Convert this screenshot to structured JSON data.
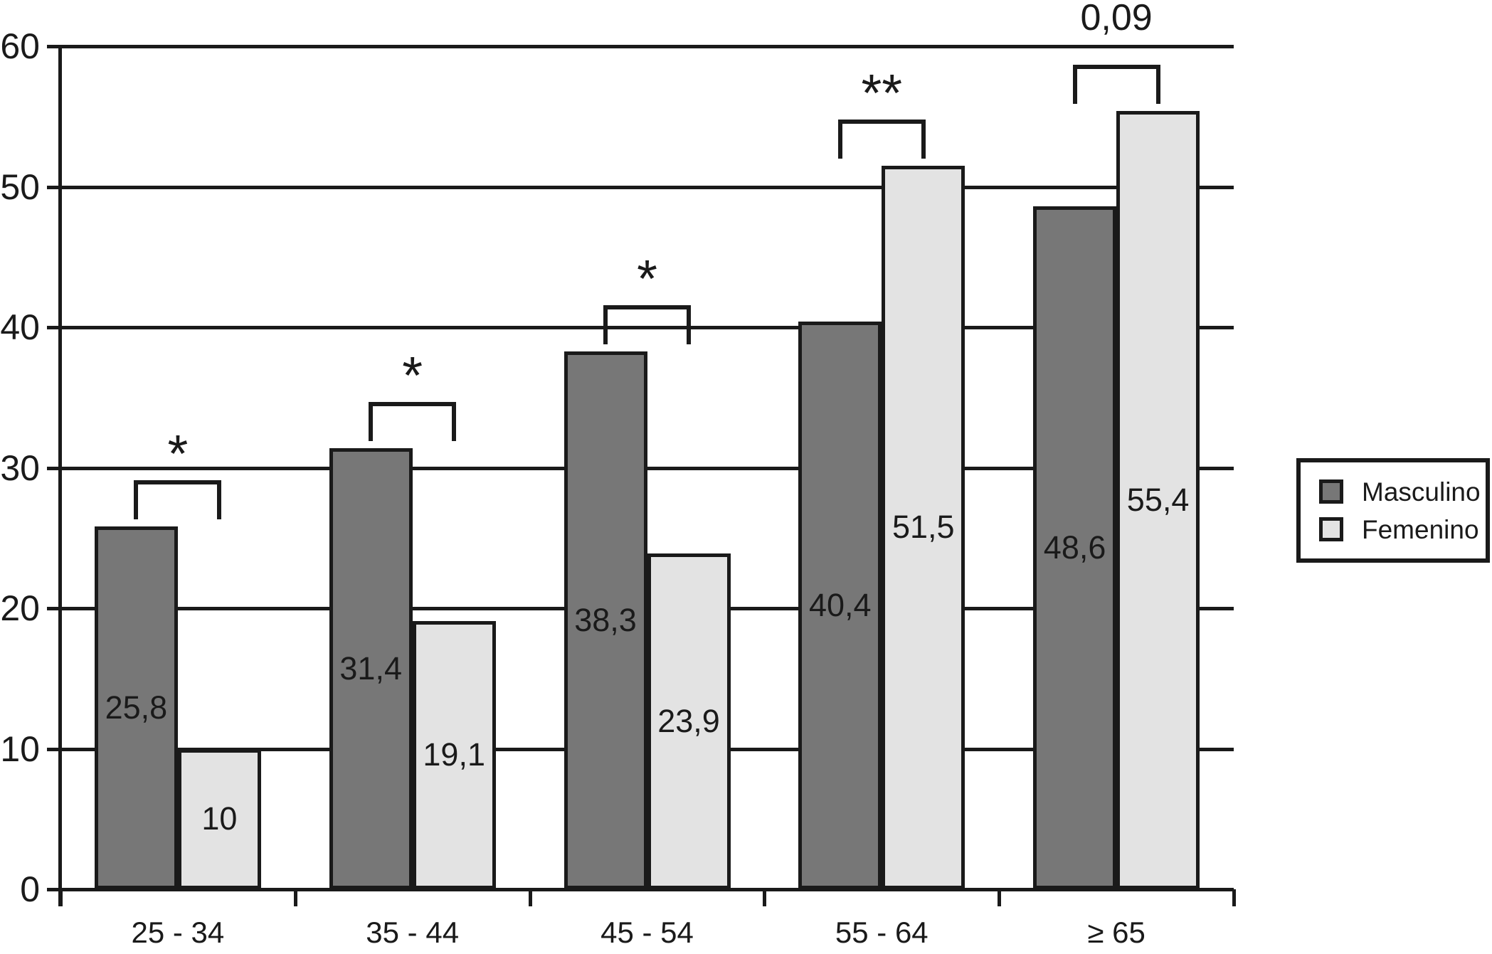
{
  "chart_data": {
    "type": "bar",
    "title": "",
    "xlabel": "",
    "ylabel": "",
    "categories": [
      "25 - 34",
      "35 - 44",
      "45 - 54",
      "55 - 64",
      "≥ 65"
    ],
    "series": [
      {
        "name": "Masculino",
        "color": "#777777",
        "values": [
          25.8,
          31.4,
          38.3,
          40.4,
          48.6
        ],
        "value_labels": [
          "25,8",
          "31,4",
          "38,3",
          "40,4",
          "48,6"
        ]
      },
      {
        "name": "Femenino",
        "color": "#e3e3e3",
        "values": [
          10,
          19.1,
          23.9,
          51.5,
          55.4
        ],
        "value_labels": [
          "10",
          "19,1",
          "23,9",
          "51,5",
          "55,4"
        ]
      }
    ],
    "ylim": [
      0,
      60
    ],
    "yticks": [
      0,
      10,
      20,
      30,
      40,
      50,
      60
    ],
    "ytick_labels": [
      "0",
      "10",
      "20",
      "30",
      "40",
      "50",
      "60"
    ],
    "grid": true,
    "legend_position": "center-right",
    "annotations": [
      {
        "category_index": 0,
        "text": "*"
      },
      {
        "category_index": 1,
        "text": "*"
      },
      {
        "category_index": 2,
        "text": "*"
      },
      {
        "category_index": 3,
        "text": "**"
      },
      {
        "category_index": 4,
        "text": "0,09"
      }
    ],
    "axis_color": "#1a1a1a",
    "text_color": "#1a1a1a",
    "background_color": "#ffffff"
  }
}
